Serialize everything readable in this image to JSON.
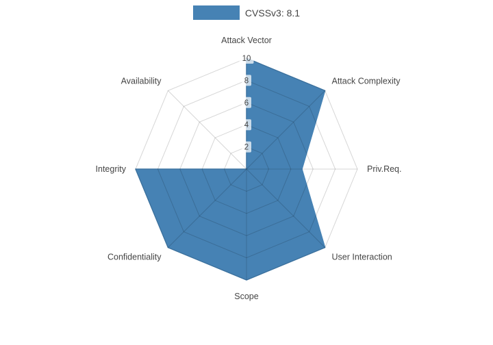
{
  "legend": {
    "label": "CVSSv3: 8.1"
  },
  "colors": {
    "fill": "#4682B4",
    "grid": "rgba(0,0,0,0.16)",
    "label_text": "#444444",
    "tick_text": "#444444",
    "tick_bg": "rgba(255,255,255,0.72)",
    "background": "#ffffff"
  },
  "chart_data": {
    "type": "radar",
    "title": "",
    "series_name": "CVSSv3: 8.1",
    "categories": [
      "Attack Vector",
      "Attack Complexity",
      "Priv.Req.",
      "User Interaction",
      "Scope",
      "Confidentiality",
      "Integrity",
      "Availability"
    ],
    "values": [
      10,
      10,
      5,
      10,
      10,
      10,
      10,
      0
    ],
    "radial_ticks": [
      2,
      4,
      6,
      8,
      10
    ],
    "rlim": [
      0,
      10
    ],
    "grid": true,
    "grid_shape": "polygon",
    "legend_position": "top-center",
    "start_axis": "top",
    "direction": "clockwise"
  }
}
